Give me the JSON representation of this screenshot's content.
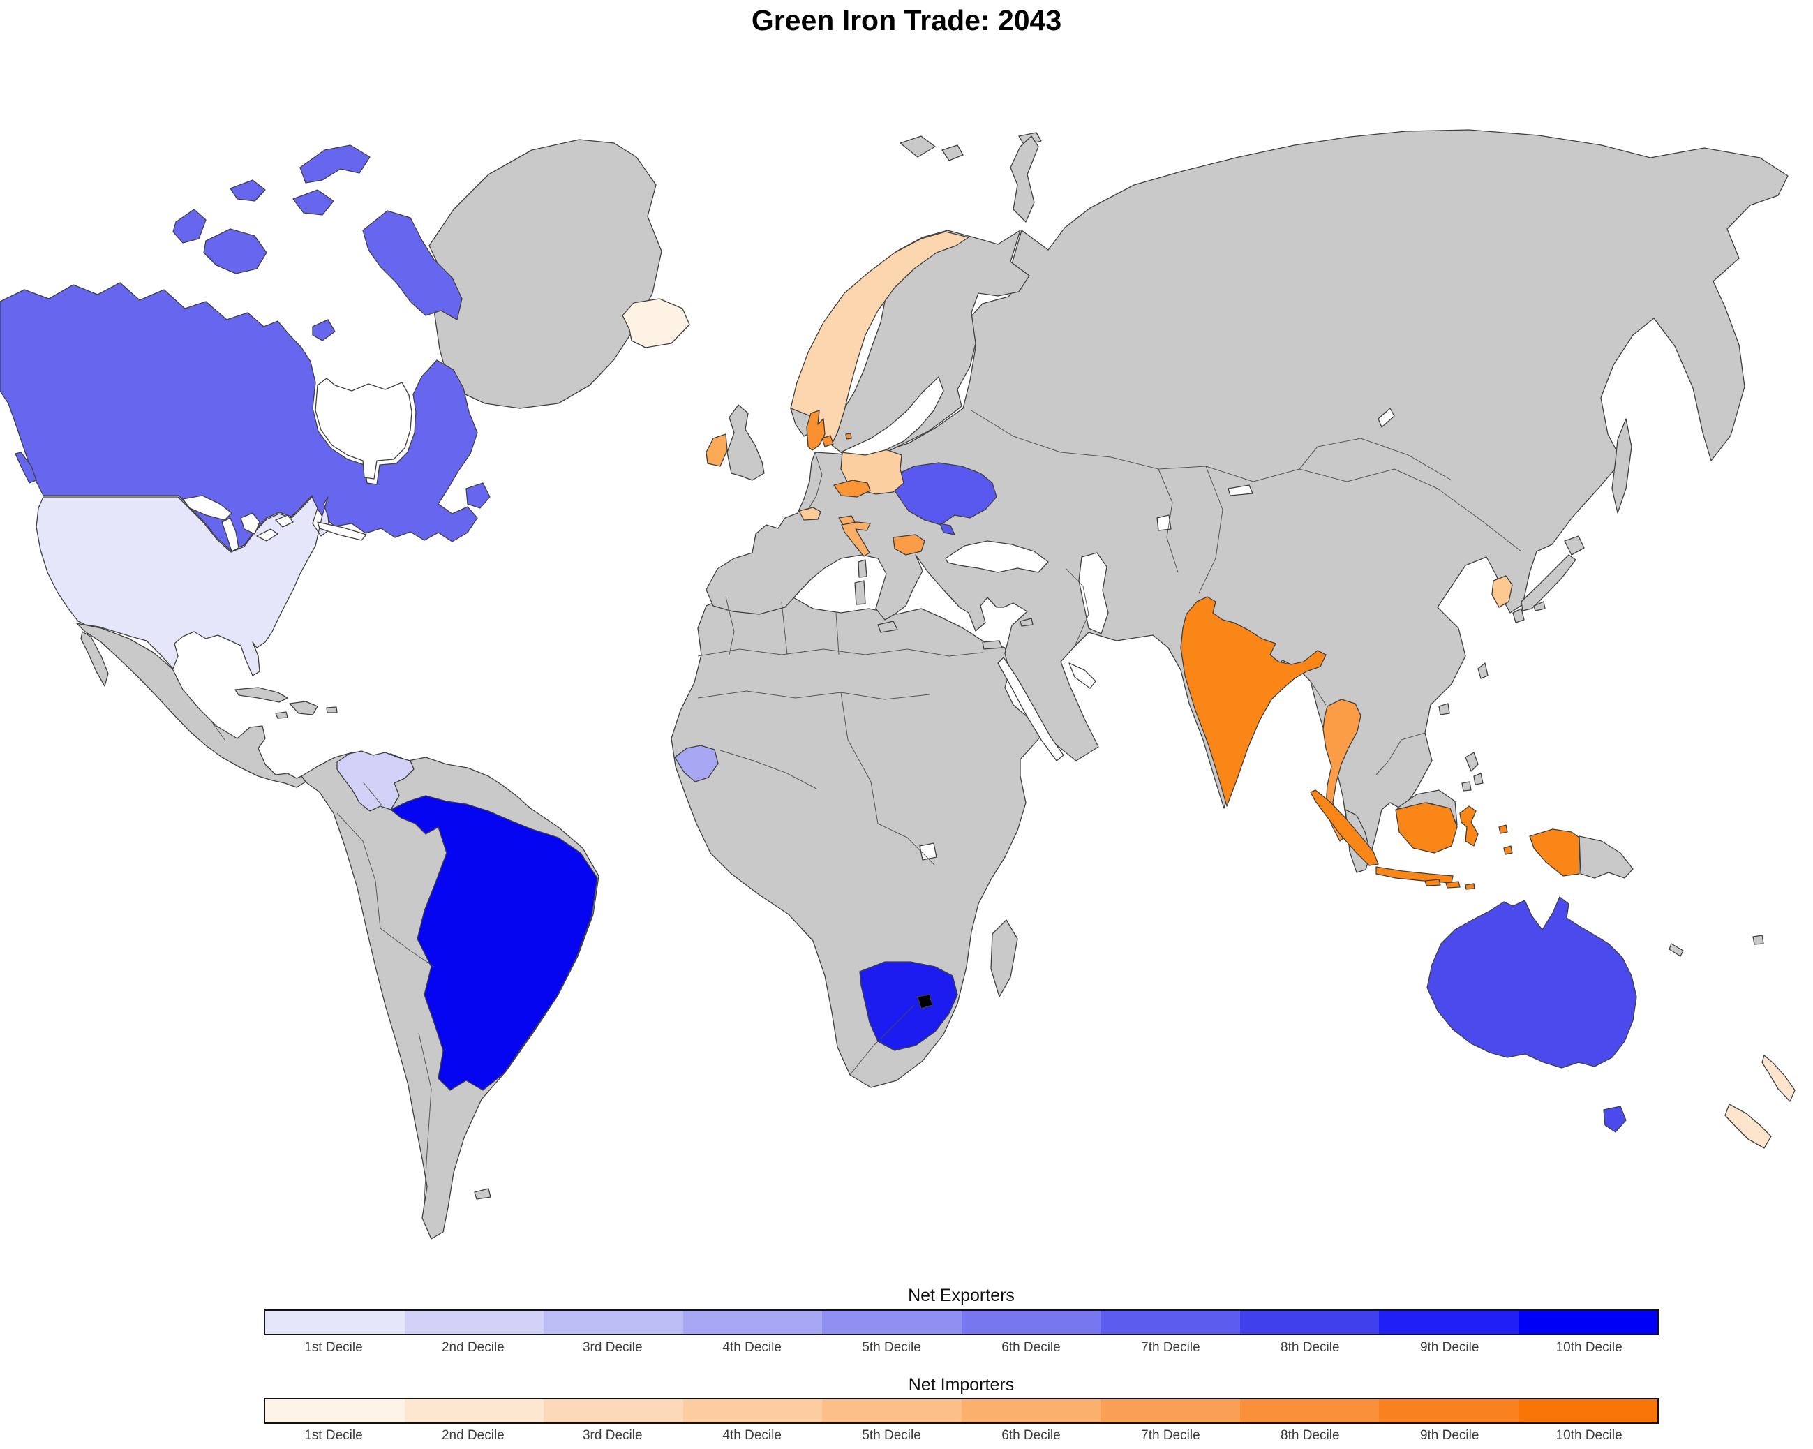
{
  "title": "Green Iron Trade: 2043",
  "legends": {
    "exporters": {
      "title": "Net Exporters",
      "labels": [
        "1st Decile",
        "2nd Decile",
        "3rd Decile",
        "4th Decile",
        "5th Decile",
        "6th Decile",
        "7th Decile",
        "8th Decile",
        "9th Decile",
        "10th Decile"
      ],
      "colors": [
        "#e6e6fa",
        "#d2d2f8",
        "#bdbdf6",
        "#a7a7f4",
        "#9090f2",
        "#7777f0",
        "#5c5cee",
        "#4040ed",
        "#2020f6",
        "#0000f6"
      ]
    },
    "importers": {
      "title": "Net Importers",
      "labels": [
        "1st Decile",
        "2nd Decile",
        "3rd Decile",
        "4th Decile",
        "5th Decile",
        "6th Decile",
        "7th Decile",
        "8th Decile",
        "9th Decile",
        "10th Decile"
      ],
      "colors": [
        "#fdf3e6",
        "#fde7d1",
        "#fcdab9",
        "#fccda1",
        "#fcbf88",
        "#fbb06e",
        "#faa054",
        "#fa913a",
        "#f98120",
        "#f87506"
      ]
    }
  },
  "map": {
    "ocean_color": "#ffffff",
    "land_color": "#c9c9c9",
    "border_color": "#404040",
    "countries": {
      "canada": {
        "name": "Canada",
        "role": "exporter",
        "decile": "6th Decile",
        "color": "#6666ee"
      },
      "usa": {
        "name": "United States",
        "role": "exporter",
        "decile": "1st Decile",
        "color": "#e6e6fa"
      },
      "venezuela": {
        "name": "Venezuela",
        "role": "exporter",
        "decile": "2nd Decile",
        "color": "#d2d2f8"
      },
      "brazil": {
        "name": "Brazil",
        "role": "exporter",
        "decile": "10th Decile",
        "color": "#0505f2"
      },
      "guinea": {
        "name": "Guinea",
        "role": "exporter",
        "decile": "4th Decile",
        "color": "#a7a7f4"
      },
      "ukraine": {
        "name": "Ukraine",
        "role": "exporter",
        "decile": "7th Decile",
        "color": "#5858ee"
      },
      "south_africa": {
        "name": "South Africa",
        "role": "exporter",
        "decile": "9th Decile",
        "color": "#1c1cf0"
      },
      "australia": {
        "name": "Australia",
        "role": "exporter",
        "decile": "7th Decile",
        "color": "#4b4bed"
      },
      "iceland": {
        "name": "Iceland",
        "role": "importer",
        "decile": "1st Decile",
        "color": "#fdf2e4"
      },
      "new_zealand": {
        "name": "New Zealand",
        "role": "importer",
        "decile": "2nd Decile",
        "color": "#fde5cd"
      },
      "norway": {
        "name": "Norway",
        "role": "importer",
        "decile": "3rd Decile",
        "color": "#fcd6ae"
      },
      "poland": {
        "name": "Poland",
        "role": "importer",
        "decile": "4th Decile",
        "color": "#fccfa0"
      },
      "switzerland": {
        "name": "Switzerland",
        "role": "importer",
        "decile": "4th Decile",
        "color": "#fccb97"
      },
      "south_korea": {
        "name": "South Korea",
        "role": "importer",
        "decile": "4th Decile",
        "color": "#fdc990"
      },
      "ireland": {
        "name": "Ireland",
        "role": "importer",
        "decile": "6th Decile",
        "color": "#fbaa58"
      },
      "slovenia": {
        "name": "Slovenia",
        "role": "importer",
        "decile": "6th Decile",
        "color": "#fbae65"
      },
      "croatia": {
        "name": "Croatia",
        "role": "importer",
        "decile": "6th Decile",
        "color": "#fbae65"
      },
      "bulgaria": {
        "name": "Bulgaria",
        "role": "importer",
        "decile": "7th Decile",
        "color": "#fa9d46"
      },
      "thailand": {
        "name": "Thailand",
        "role": "importer",
        "decile": "7th Decile",
        "color": "#fa9d46"
      },
      "czechia": {
        "name": "Czechia",
        "role": "importer",
        "decile": "8th Decile",
        "color": "#fa9434"
      },
      "denmark": {
        "name": "Denmark",
        "role": "importer",
        "decile": "8th Decile",
        "color": "#fa9030"
      },
      "india": {
        "name": "India",
        "role": "importer",
        "decile": "9th Decile",
        "color": "#fa8618"
      },
      "indonesia": {
        "name": "Indonesia",
        "role": "importer",
        "decile": "9th Decile",
        "color": "#fa8618"
      }
    }
  },
  "chart_data": {
    "type": "choropleth",
    "title": "Green Iron Trade: 2043",
    "legend_position": "bottom",
    "series": [
      {
        "name": "Net Exporters",
        "palette": "light lavender to pure blue, 10 deciles",
        "countries": [
          {
            "country": "United States",
            "decile": 1
          },
          {
            "country": "Venezuela",
            "decile": 2
          },
          {
            "country": "Guinea",
            "decile": 4
          },
          {
            "country": "Canada",
            "decile": 6
          },
          {
            "country": "Ukraine",
            "decile": 7
          },
          {
            "country": "Australia",
            "decile": 7
          },
          {
            "country": "South Africa",
            "decile": 9
          },
          {
            "country": "Brazil",
            "decile": 10
          }
        ]
      },
      {
        "name": "Net Importers",
        "palette": "pale cream to strong orange, 10 deciles",
        "countries": [
          {
            "country": "Iceland",
            "decile": 1
          },
          {
            "country": "New Zealand",
            "decile": 2
          },
          {
            "country": "Norway",
            "decile": 3
          },
          {
            "country": "Poland",
            "decile": 4
          },
          {
            "country": "Switzerland",
            "decile": 4
          },
          {
            "country": "South Korea",
            "decile": 4
          },
          {
            "country": "Ireland",
            "decile": 6
          },
          {
            "country": "Slovenia",
            "decile": 6
          },
          {
            "country": "Croatia",
            "decile": 6
          },
          {
            "country": "Bulgaria",
            "decile": 7
          },
          {
            "country": "Thailand",
            "decile": 7
          },
          {
            "country": "Czechia",
            "decile": 8
          },
          {
            "country": "Denmark",
            "decile": 8
          },
          {
            "country": "India",
            "decile": 9
          },
          {
            "country": "Indonesia",
            "decile": 9
          }
        ]
      }
    ]
  }
}
